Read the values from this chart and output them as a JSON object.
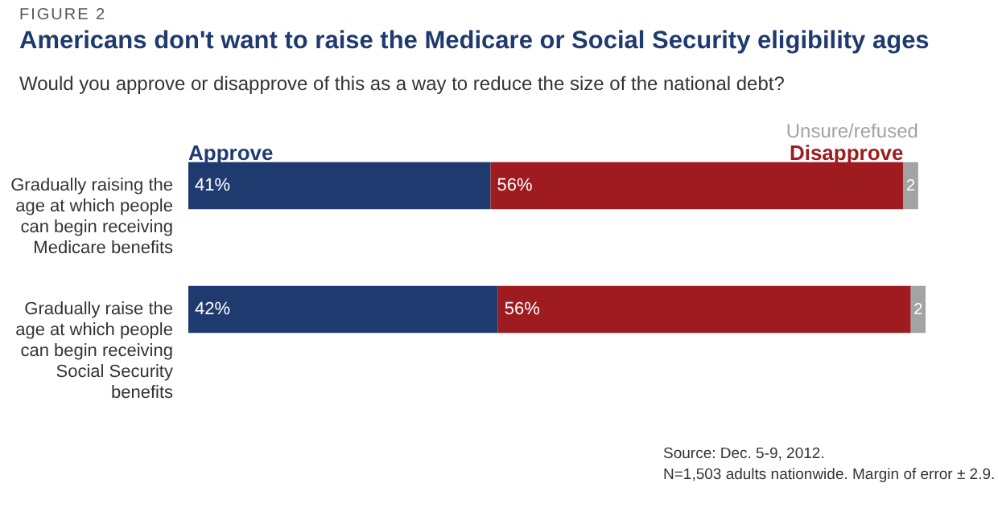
{
  "chart_data": {
    "type": "bar",
    "orientation": "horizontal",
    "stacked": true,
    "title": "Americans don't want to raise the Medicare or Social Security eligibility ages",
    "subtitle": "Would you approve or disapprove of this as a way to reduce the size of the national debt?",
    "categories": [
      "Gradually raising the age at which people can begin receiving Medicare benefits",
      "Gradually raise the age at which people can begin receiving Social Security benefits"
    ],
    "series": [
      {
        "name": "Approve",
        "color": "#1f3a6e",
        "values": [
          41,
          42
        ],
        "value_labels": [
          "41%",
          "42%"
        ]
      },
      {
        "name": "Disapprove",
        "color": "#9e1b20",
        "values": [
          56,
          56
        ],
        "value_labels": [
          "56%",
          "56%"
        ]
      },
      {
        "name": "Unsure/refused",
        "color": "#a3a3a3",
        "values": [
          2,
          2
        ],
        "value_labels": [
          "2",
          "2"
        ]
      }
    ],
    "xlim": [
      0,
      100
    ],
    "tick_labels": "y",
    "legend": "top",
    "annotations": [
      "FIGURE 2",
      "Source: Dec. 5-9, 2012.",
      "N=1,503 adults nationwide. Margin of error ± 2.9."
    ]
  }
}
